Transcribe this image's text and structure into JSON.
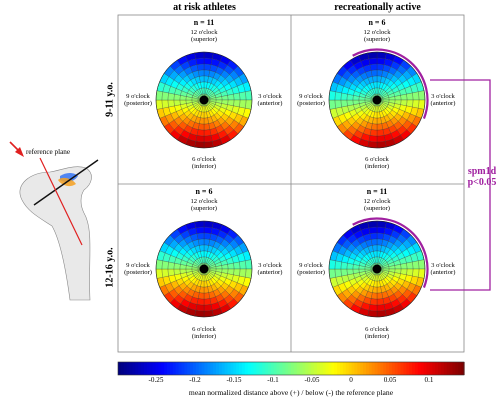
{
  "columns": [
    "at risk athletes",
    "recreationally active"
  ],
  "rows": [
    "9-11 y.o.",
    "12-16 y.o."
  ],
  "panels": [
    {
      "id": "p11",
      "n": "n = 11",
      "orient": 0
    },
    {
      "id": "p12",
      "n": "n = 6",
      "orient": 0
    },
    {
      "id": "p21",
      "n": "n = 6",
      "orient": 0
    },
    {
      "id": "p22",
      "n": "n = 11",
      "orient": 0
    }
  ],
  "clock_labels": {
    "top": [
      "12 o'clock",
      "(superior)"
    ],
    "left": [
      "9 o'clock",
      "(posterior)"
    ],
    "right": [
      "3 o'clock",
      "(anterior)"
    ],
    "bottom": [
      "6 o'clock",
      "(inferior)"
    ]
  },
  "reference_plane_label": "reference plane",
  "significance": [
    "spm1d",
    "p<0.05"
  ],
  "colorbar": {
    "ticks": [
      "-0.25",
      "-0.2",
      "-0.15",
      "-0.1",
      "-0.05",
      "0",
      "0.05",
      "0.1"
    ],
    "label": "mean normalized distance above (+) / below (-) the reference plane",
    "min": -0.28,
    "max": 0.13,
    "colormap": "jet"
  },
  "colors": {
    "significance": "#a020a0",
    "reference_line": "#e02020",
    "grid": "#555555"
  }
}
